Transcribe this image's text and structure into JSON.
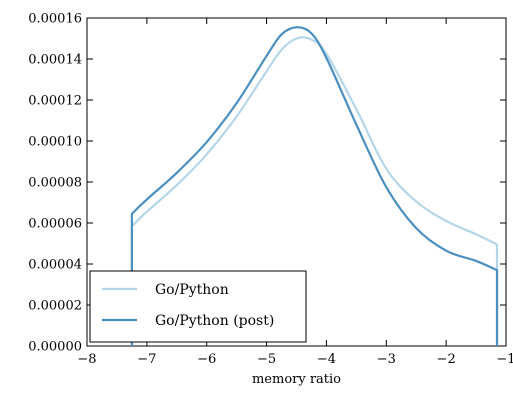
{
  "chart_data": {
    "type": "line",
    "title": "",
    "xlabel": "memory ratio",
    "ylabel": "",
    "xlim": [
      -8,
      -1
    ],
    "ylim": [
      0,
      0.00016
    ],
    "x_ticks": [
      -8,
      -7,
      -6,
      -5,
      -4,
      -3,
      -2,
      -1
    ],
    "x_tick_labels": [
      "−8",
      "−7",
      "−6",
      "−5",
      "−4",
      "−3",
      "−2",
      "−1"
    ],
    "y_ticks": [
      0,
      2e-05,
      4e-05,
      6e-05,
      8e-05,
      0.0001,
      0.00012,
      0.00014,
      0.00016
    ],
    "y_tick_labels": [
      "0.00000",
      "0.00002",
      "0.00004",
      "0.00006",
      "0.00008",
      "0.00010",
      "0.00012",
      "0.00014",
      "0.00016"
    ],
    "grid": false,
    "legend_position": "lower-left",
    "series": [
      {
        "name": "Go/Python",
        "color": "#b4d6e8",
        "x": [
          -7.25,
          -7.25,
          -7.0,
          -6.5,
          -6.0,
          -5.5,
          -5.0,
          -4.75,
          -4.5,
          -4.25,
          -4.0,
          -3.5,
          -3.0,
          -2.5,
          -2.0,
          -1.5,
          -1.15,
          -1.15
        ],
        "y": [
          0,
          5.85e-05,
          6.55e-05,
          7.85e-05,
          9.35e-05,
          0.000112,
          0.000134,
          0.0001445,
          0.00015,
          0.0001495,
          0.0001425,
          0.0001155,
          8.65e-05,
          7.05e-05,
          6.1e-05,
          5.45e-05,
          4.95e-05,
          0
        ]
      },
      {
        "name": "Go/Python (post)",
        "color": "#4a8fc0",
        "x": [
          -7.25,
          -7.25,
          -7.0,
          -6.5,
          -6.0,
          -5.5,
          -5.0,
          -4.75,
          -4.5,
          -4.25,
          -4.0,
          -3.5,
          -3.0,
          -2.5,
          -2.0,
          -1.5,
          -1.15,
          -1.15
        ],
        "y": [
          0,
          6.45e-05,
          7.15e-05,
          8.45e-05,
          9.95e-05,
          0.0001185,
          0.0001415,
          0.000152,
          0.0001555,
          0.0001525,
          0.0001405,
          0.000108,
          7.75e-05,
          5.75e-05,
          4.65e-05,
          4.15e-05,
          3.7e-05,
          0
        ]
      }
    ]
  }
}
